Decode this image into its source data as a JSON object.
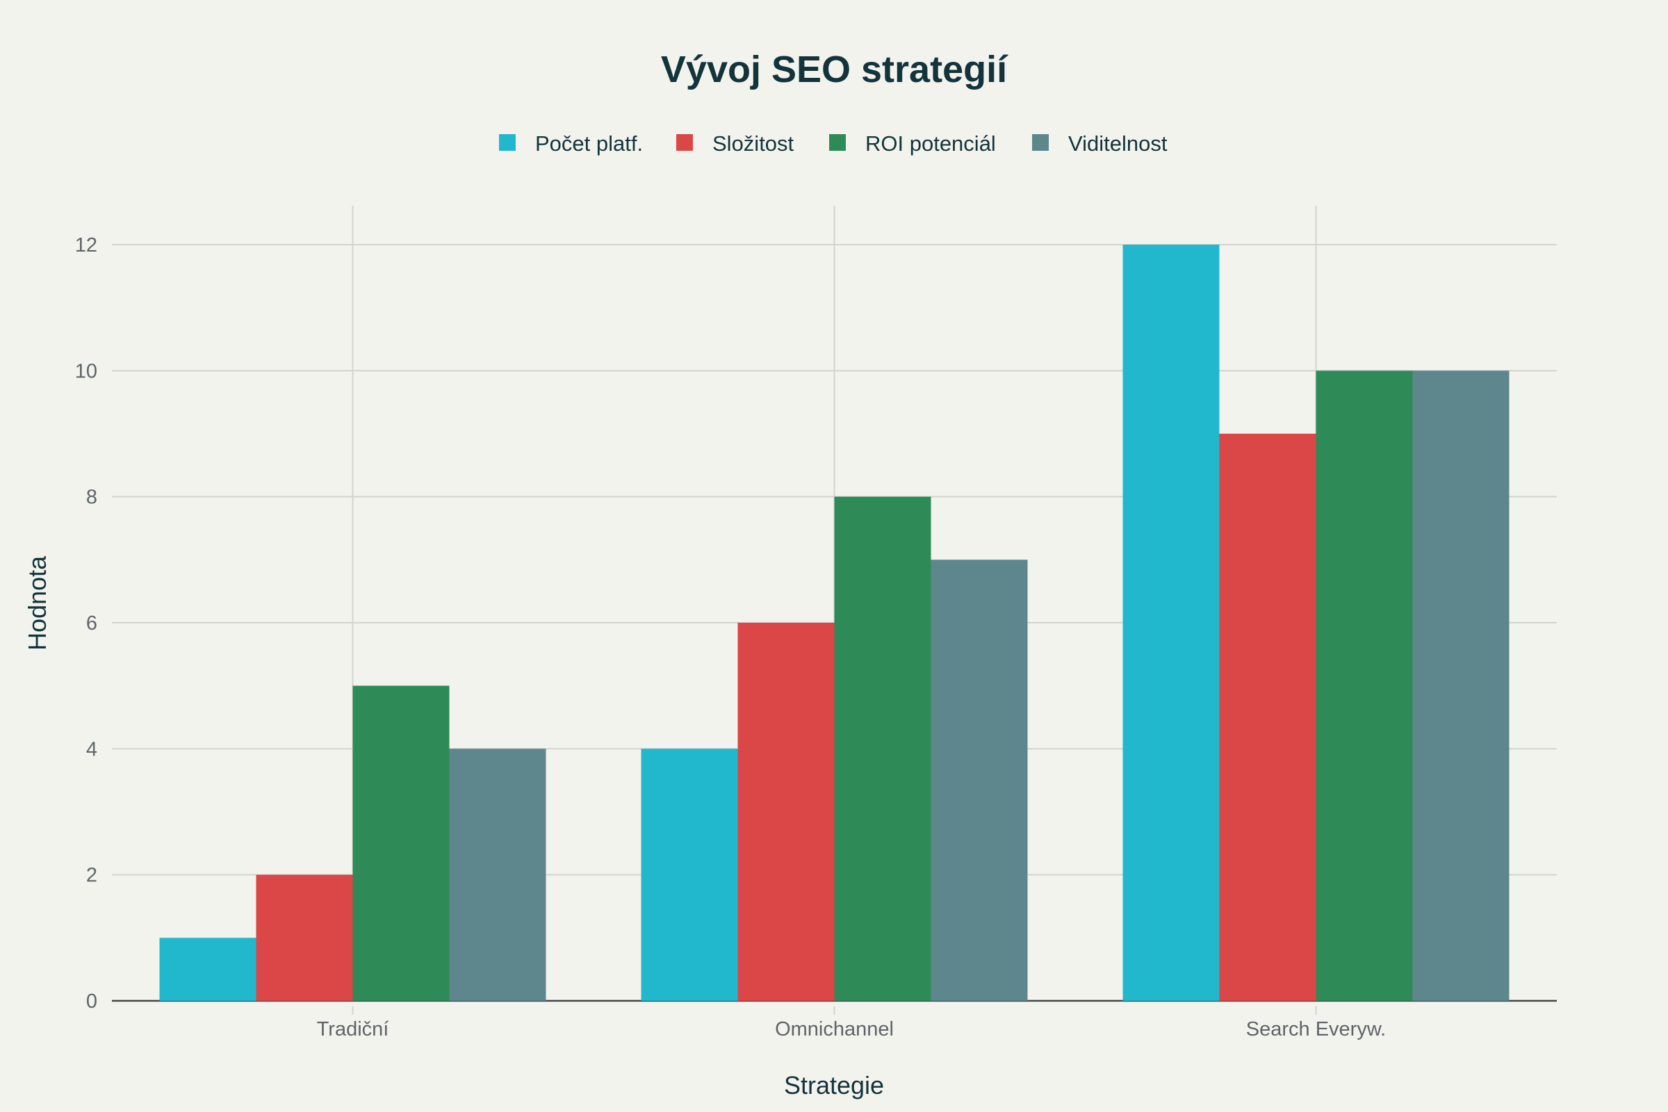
{
  "chart_data": {
    "type": "bar",
    "title": "Vývoj SEO strategií",
    "xlabel": "Strategie",
    "ylabel": "Hodnota",
    "categories": [
      "Tradiční",
      "Omnichannel",
      "Search Everyw."
    ],
    "series": [
      {
        "name": "Počet platf.",
        "color": "#21B8CD",
        "values": [
          1,
          4,
          12
        ]
      },
      {
        "name": "Složitost",
        "color": "#DB4647",
        "values": [
          2,
          6,
          9
        ]
      },
      {
        "name": "ROI potenciál",
        "color": "#2E8B57",
        "values": [
          5,
          8,
          10
        ]
      },
      {
        "name": "Viditelnost",
        "color": "#5D878D",
        "values": [
          4,
          7,
          10
        ]
      }
    ],
    "ylim": [
      0,
      12.6
    ],
    "yticks": [
      0,
      2,
      4,
      6,
      8,
      10,
      12
    ],
    "grid": true,
    "legend_position": "top-center",
    "background": "#F3F3EE"
  }
}
